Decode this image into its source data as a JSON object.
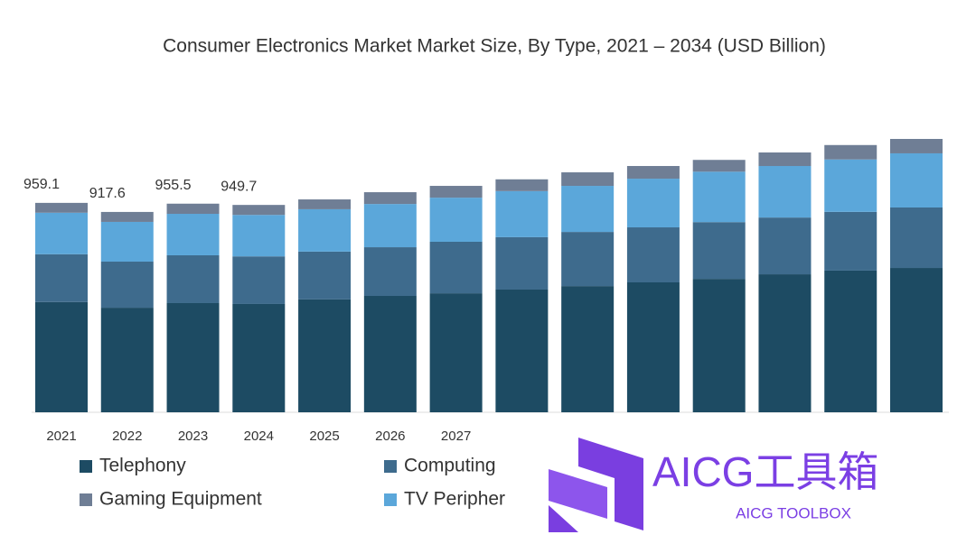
{
  "chart_data": {
    "type": "stacked-bar",
    "title": "Consumer Electronics Market Market Size, By Type, 2021 – 2034 (USD Billion)",
    "categories": [
      "2021",
      "2022",
      "2023",
      "2024",
      "2025",
      "2026",
      "2027",
      null,
      null,
      null,
      null,
      null,
      null,
      null
    ],
    "series": [
      {
        "name": "Telephony",
        "color": "#1d4b63",
        "values": [
          505,
          479,
          500,
          496,
          517,
          533,
          545,
          562,
          578,
          595,
          611,
          632,
          649,
          661
        ]
      },
      {
        "name": "Computing",
        "color": "#3e6b8d",
        "values": [
          219,
          211,
          219,
          218,
          219,
          223,
          236,
          240,
          248,
          252,
          260,
          260,
          269,
          277
        ]
      },
      {
        "name": "TV Peripher",
        "color": "#5ba7da",
        "values": [
          190,
          182,
          190,
          190,
          194,
          198,
          202,
          211,
          211,
          223,
          231,
          236,
          240,
          248
        ]
      },
      {
        "name": "Gaming Equipment",
        "color": "#6f7e95",
        "values": [
          45.1,
          45.6,
          46.5,
          45.7,
          45,
          54,
          54,
          54,
          62,
          58,
          54,
          62,
          66,
          66
        ]
      }
    ],
    "totals": [
      959.1,
      917.6,
      955.5,
      949.7,
      null,
      null,
      null,
      null,
      null,
      null,
      null,
      null,
      null,
      null
    ]
  },
  "watermark": {
    "title": "AICG工具箱",
    "subtitle": "AICG TOOLBOX"
  }
}
